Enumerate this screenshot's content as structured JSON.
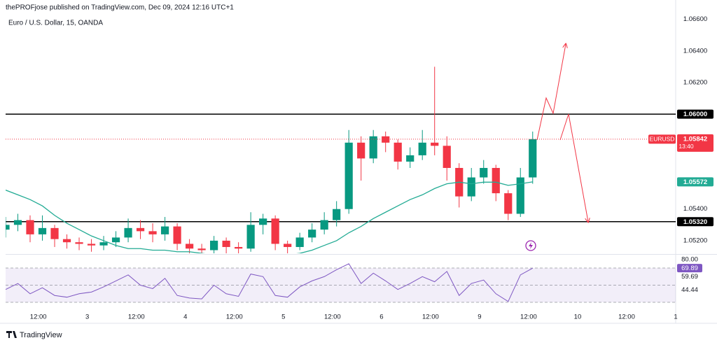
{
  "header": {
    "publisher_line": "thePROFjose published on TradingView.com, Dec 09, 2024 12:16 UTC+1",
    "symbol_line": "Euro / U.S. Dollar, 15, OANDA"
  },
  "footer": {
    "brand": "TradingView"
  },
  "chart_data": [
    {
      "type": "candlestick",
      "x": [
        0,
        3,
        6,
        9,
        12,
        15,
        18,
        21,
        24,
        27,
        30,
        33,
        36,
        39,
        42,
        45,
        48,
        51,
        54,
        57,
        60,
        63,
        66,
        69,
        72,
        75,
        78,
        81,
        84,
        87,
        90,
        93,
        96,
        99,
        102,
        105,
        108,
        111,
        114,
        117,
        120,
        123,
        126,
        129
      ],
      "open": [
        1.0527,
        1.053,
        1.0533,
        1.0524,
        1.0528,
        1.0521,
        1.0519,
        1.0518,
        1.0517,
        1.0519,
        1.0522,
        1.0528,
        1.0526,
        1.0524,
        1.0529,
        1.0518,
        1.0515,
        1.0514,
        1.052,
        1.0516,
        1.0515,
        1.053,
        1.0534,
        1.0518,
        1.0516,
        1.0522,
        1.0527,
        1.0533,
        1.054,
        1.0582,
        1.0572,
        1.0586,
        1.0582,
        1.057,
        1.0574,
        1.0582,
        1.058,
        1.0566,
        1.0548,
        1.056,
        1.0566,
        1.055,
        1.0537,
        1.056
      ],
      "high": [
        1.0535,
        1.0537,
        1.0536,
        1.0536,
        1.053,
        1.0524,
        1.0522,
        1.0521,
        1.0523,
        1.0526,
        1.0534,
        1.0533,
        1.0531,
        1.0535,
        1.0531,
        1.0521,
        1.0518,
        1.0523,
        1.0522,
        1.0519,
        1.0538,
        1.0537,
        1.0536,
        1.052,
        1.0525,
        1.0531,
        1.0538,
        1.0545,
        1.059,
        1.0586,
        1.059,
        1.0589,
        1.0584,
        1.0579,
        1.059,
        1.063,
        1.0586,
        1.0569,
        1.0566,
        1.0571,
        1.0568,
        1.0552,
        1.0566,
        1.0589
      ],
      "low": [
        1.0522,
        1.0526,
        1.0519,
        1.052,
        1.0516,
        1.0515,
        1.0514,
        1.0513,
        1.0514,
        1.0516,
        1.0519,
        1.0521,
        1.0519,
        1.052,
        1.0514,
        1.0511,
        1.051,
        1.0511,
        1.0512,
        1.0511,
        1.0513,
        1.0524,
        1.0514,
        1.0512,
        1.0514,
        1.0519,
        1.0524,
        1.0529,
        1.0537,
        1.0558,
        1.0569,
        1.0576,
        1.0565,
        1.0566,
        1.0571,
        1.0574,
        1.0558,
        1.0541,
        1.0545,
        1.0556,
        1.0545,
        1.0533,
        1.0535,
        1.0556
      ],
      "close": [
        1.053,
        1.0533,
        1.0524,
        1.0528,
        1.0521,
        1.0519,
        1.0518,
        1.0517,
        1.0519,
        1.0522,
        1.0528,
        1.0526,
        1.0524,
        1.0529,
        1.0518,
        1.0515,
        1.0514,
        1.052,
        1.0516,
        1.0515,
        1.053,
        1.0534,
        1.0518,
        1.0516,
        1.0522,
        1.0527,
        1.0533,
        1.054,
        1.0582,
        1.0572,
        1.0586,
        1.0582,
        1.057,
        1.0574,
        1.0582,
        1.058,
        1.0566,
        1.0548,
        1.056,
        1.0566,
        1.055,
        1.0537,
        1.056,
        1.05842
      ],
      "up_color": "#089981",
      "down_color": "#f23645",
      "xlim": [
        0,
        164
      ],
      "ylim": [
        1.0512,
        1.067
      ],
      "xticks": [
        {
          "value": 8,
          "label": "12:00"
        },
        {
          "value": 20,
          "label": "3"
        },
        {
          "value": 32,
          "label": "12:00"
        },
        {
          "value": 44,
          "label": "4"
        },
        {
          "value": 56,
          "label": "12:00"
        },
        {
          "value": 68,
          "label": "5"
        },
        {
          "value": 80,
          "label": "12:00"
        },
        {
          "value": 92,
          "label": "6"
        },
        {
          "value": 104,
          "label": "12:00"
        },
        {
          "value": 116,
          "label": "9"
        },
        {
          "value": 128,
          "label": "12:00"
        },
        {
          "value": 140,
          "label": "10"
        },
        {
          "value": 152,
          "label": "12:00"
        },
        {
          "value": 164,
          "label": "1"
        }
      ],
      "yticks": [
        {
          "value": 1.066,
          "label": "1.06600"
        },
        {
          "value": 1.064,
          "label": "1.06400"
        },
        {
          "value": 1.062,
          "label": "1.06200"
        },
        {
          "value": 1.054,
          "label": "1.05400"
        },
        {
          "value": 1.052,
          "label": "1.05200"
        }
      ],
      "overlays": [
        {
          "type": "line",
          "color": "#22ab94",
          "values": [
            1.0552,
            1.0549,
            1.0546,
            1.0542,
            1.0536,
            1.0531,
            1.0527,
            1.0523,
            1.052,
            1.0517,
            1.0515,
            1.0515,
            1.0514,
            1.0514,
            1.0513,
            1.0513,
            1.0512,
            1.0511,
            1.051,
            1.051,
            1.0511,
            1.0511,
            1.0511,
            1.0511,
            1.0512,
            1.0514,
            1.0517,
            1.052,
            1.0525,
            1.0529,
            1.0534,
            1.0538,
            1.0542,
            1.0546,
            1.0549,
            1.0553,
            1.0556,
            1.0557,
            1.0556,
            1.0557,
            1.0557,
            1.0555,
            1.0556,
            1.05572
          ],
          "last_label": "1.05572"
        }
      ],
      "levels": [
        {
          "value": 1.06,
          "label": "1.06000",
          "color": "#000000"
        },
        {
          "value": 1.0532,
          "label": "1.05320",
          "color": "#000000"
        }
      ],
      "last_price": {
        "symbol": "EURUSD",
        "label": "1.05842",
        "countdown": "13:40",
        "color": "#f23645"
      }
    },
    {
      "type": "line",
      "x": [
        0,
        3,
        6,
        9,
        12,
        15,
        18,
        21,
        24,
        27,
        30,
        33,
        36,
        39,
        42,
        45,
        48,
        51,
        54,
        57,
        60,
        63,
        66,
        69,
        72,
        75,
        78,
        81,
        84,
        87,
        90,
        93,
        96,
        99,
        102,
        105,
        108,
        111,
        114,
        117,
        120,
        123,
        126,
        129
      ],
      "values": [
        45,
        52,
        40,
        47,
        38,
        36,
        40,
        42,
        48,
        55,
        62,
        50,
        46,
        58,
        38,
        35,
        34,
        50,
        40,
        37,
        63,
        60,
        38,
        36,
        48,
        55,
        60,
        68,
        75,
        52,
        64,
        55,
        45,
        52,
        60,
        54,
        66,
        38,
        52,
        56,
        40,
        31,
        62,
        69.89
      ],
      "color": "#7e57c2",
      "last_label": "69.89",
      "ylim": [
        23.5,
        84.7
      ],
      "yticks": [
        {
          "value": 80,
          "label": "80.00"
        }
      ],
      "bands": [
        70,
        50,
        30
      ],
      "markers": [
        {
          "value": 59.69,
          "label": "59.69"
        },
        {
          "value": 44.44,
          "label": "44.44"
        }
      ]
    }
  ]
}
